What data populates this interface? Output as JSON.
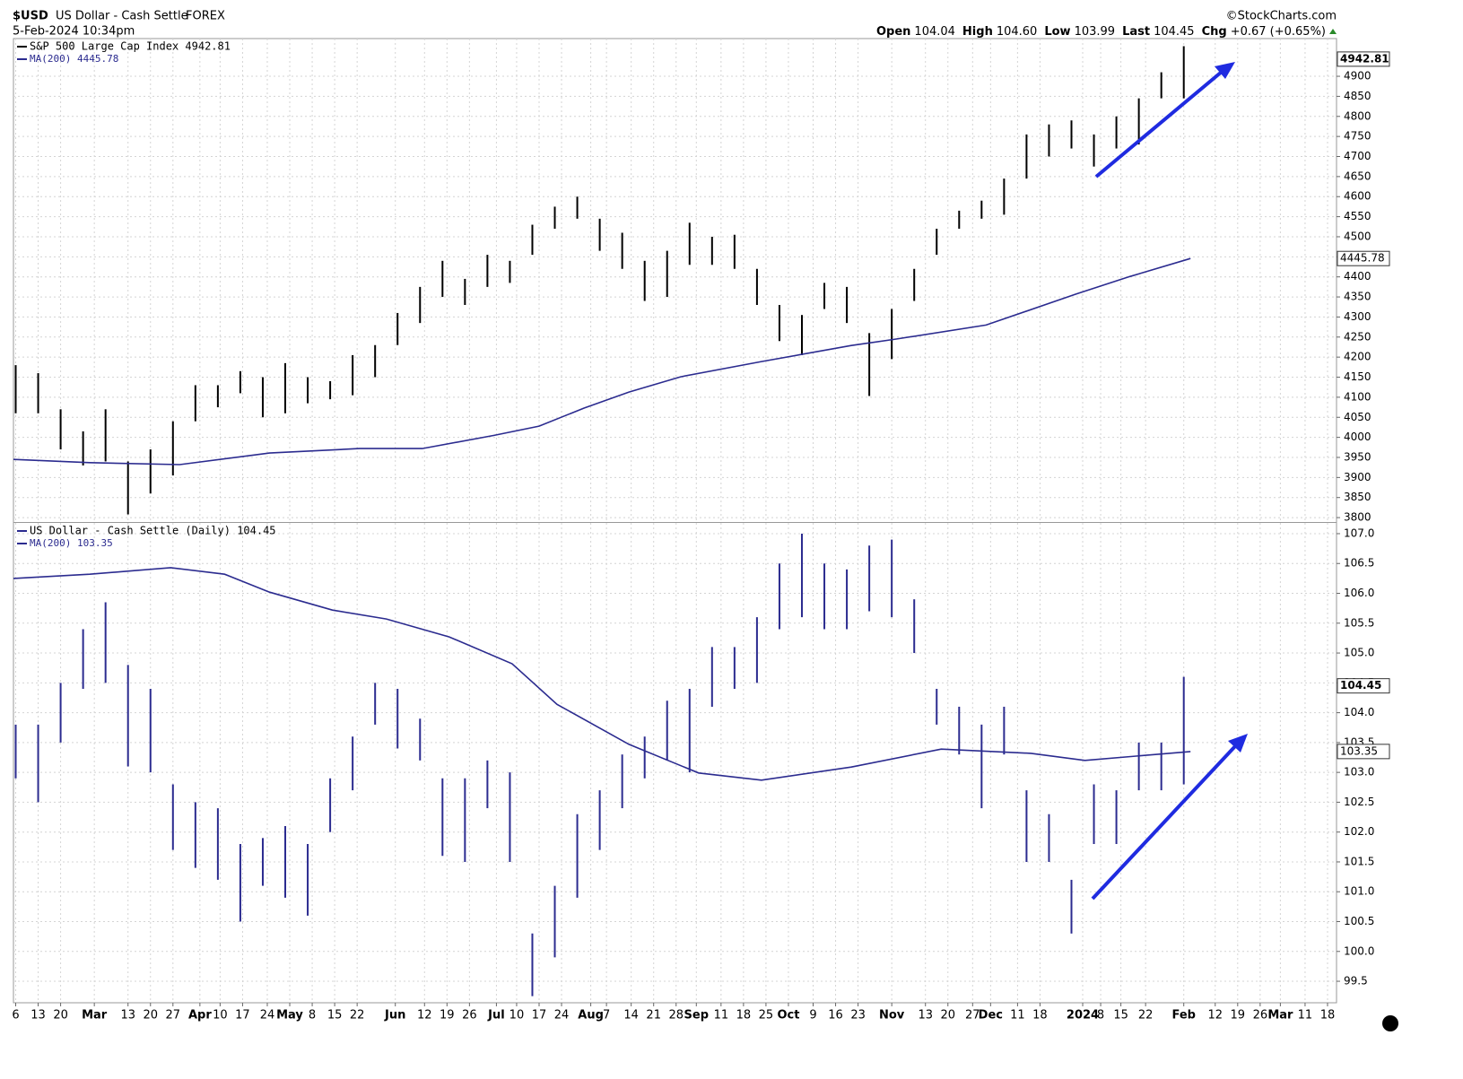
{
  "header": {
    "symbol": "$USD",
    "name": "US Dollar - Cash Settle",
    "exchange": "FOREX",
    "date": "5-Feb-2024 10:34pm",
    "source": "©StockCharts.com",
    "quote": [
      {
        "label": "Open",
        "value": "104.04"
      },
      {
        "label": "High",
        "value": "104.60"
      },
      {
        "label": "Low",
        "value": "103.99"
      },
      {
        "label": "Last",
        "value": "104.45"
      },
      {
        "label": "Chg",
        "value": "+0.67 (+0.65%)"
      }
    ]
  },
  "chart_data": [
    {
      "type": "ohlc",
      "ylim": [
        3789,
        4994
      ],
      "xlim": [
        -0.1,
        58.8
      ],
      "grid": true,
      "yticks": [
        3800,
        3850,
        3900,
        3950,
        4000,
        4050,
        4100,
        4150,
        4200,
        4250,
        4300,
        4350,
        4400,
        4450,
        4500,
        4550,
        4600,
        4650,
        4700,
        4750,
        4800,
        4850,
        4900
      ],
      "series": [
        {
          "name": "S&P 500 Large Cap Index 4942.81",
          "color": "#000000",
          "last": 4942.81,
          "x": [
            0,
            1,
            2,
            3,
            4,
            5,
            6,
            7,
            8,
            9,
            10,
            11,
            12,
            13,
            14,
            15,
            16,
            17,
            18,
            19,
            20,
            21,
            22,
            23,
            24,
            25,
            26,
            27,
            28,
            29,
            30,
            31,
            32,
            33,
            34,
            35,
            36,
            37,
            38,
            39,
            40,
            41,
            42,
            43,
            44,
            45,
            46,
            47,
            48,
            49,
            50,
            51,
            52
          ],
          "high": [
            4180,
            4160,
            4070,
            4015,
            4070,
            3940,
            3970,
            4040,
            4130,
            4130,
            4165,
            4150,
            4185,
            4150,
            4140,
            4205,
            4230,
            4310,
            4375,
            4440,
            4395,
            4455,
            4440,
            4530,
            4575,
            4600,
            4545,
            4510,
            4440,
            4465,
            4535,
            4500,
            4505,
            4420,
            4330,
            4305,
            4385,
            4375,
            4260,
            4320,
            4420,
            4520,
            4565,
            4590,
            4645,
            4755,
            4780,
            4790,
            4755,
            4800,
            4845,
            4910,
            4975
          ],
          "low": [
            4060,
            4060,
            3970,
            3930,
            3940,
            3808,
            3860,
            3905,
            4040,
            4075,
            4110,
            4050,
            4060,
            4085,
            4095,
            4105,
            4150,
            4230,
            4285,
            4350,
            4330,
            4375,
            4385,
            4455,
            4520,
            4545,
            4465,
            4420,
            4340,
            4350,
            4430,
            4430,
            4420,
            4330,
            4240,
            4205,
            4320,
            4285,
            4103,
            4195,
            4340,
            4455,
            4520,
            4545,
            4555,
            4645,
            4700,
            4720,
            4675,
            4720,
            4730,
            4845,
            4845
          ]
        },
        {
          "name": "MA(200) 4445.78",
          "color": "#2b2b8f",
          "last": 4445.78,
          "x": [
            -0.1,
            3.3,
            7.3,
            11.3,
            15.3,
            18.1,
            21.3,
            23.3,
            25.3,
            27.3,
            29.6,
            33.2,
            37.2,
            39.2,
            43.2,
            47.2,
            49.6,
            52.3
          ],
          "values": [
            3945,
            3937,
            3932,
            3961,
            3972,
            3972,
            4005,
            4028,
            4073,
            4113,
            4151,
            4189,
            4229,
            4245,
            4280,
            4357,
            4401,
            4445.78
          ]
        }
      ]
    },
    {
      "type": "ohlc",
      "ylim": [
        99.14,
        107.18
      ],
      "xlim": [
        -0.1,
        58.8
      ],
      "grid": true,
      "yticks": [
        99.5,
        {
          "value": 100,
          "label": "100.0"
        },
        100.5,
        {
          "value": 101,
          "label": "101.0"
        },
        101.5,
        {
          "value": 102,
          "label": "102.0"
        },
        102.5,
        {
          "value": 103,
          "label": "103.0"
        },
        103.5,
        {
          "value": 104,
          "label": "104.0"
        },
        104.5,
        {
          "value": 105,
          "label": "105.0"
        },
        105.5,
        {
          "value": 106,
          "label": "106.0"
        },
        106.5,
        {
          "value": 107,
          "label": "107.0"
        }
      ],
      "xticks": [
        {
          "value": 0,
          "label": "6"
        },
        {
          "value": 1.0,
          "label": "13"
        },
        {
          "value": 2.0,
          "label": "20"
        },
        {
          "value": 3.5,
          "label": "Mar"
        },
        {
          "value": 5.0,
          "label": "13"
        },
        {
          "value": 6.0,
          "label": "20"
        },
        {
          "value": 7.0,
          "label": "27"
        },
        {
          "value": 8.2,
          "label": "Apr"
        },
        {
          "value": 9.1,
          "label": "10"
        },
        {
          "value": 10.1,
          "label": "17"
        },
        {
          "value": 11.2,
          "label": "24"
        },
        {
          "value": 12.2,
          "label": "May"
        },
        {
          "value": 13.2,
          "label": "8"
        },
        {
          "value": 14.2,
          "label": "15"
        },
        {
          "value": 15.2,
          "label": "22"
        },
        {
          "value": 16.9,
          "label": "Jun"
        },
        {
          "value": 18.2,
          "label": "12"
        },
        {
          "value": 19.2,
          "label": "19"
        },
        {
          "value": 20.2,
          "label": "26"
        },
        {
          "value": 21.4,
          "label": "Jul"
        },
        {
          "value": 22.3,
          "label": "10"
        },
        {
          "value": 23.3,
          "label": "17"
        },
        {
          "value": 24.3,
          "label": "24"
        },
        {
          "value": 25.6,
          "label": "Aug"
        },
        {
          "value": 26.3,
          "label": "7"
        },
        {
          "value": 27.4,
          "label": "14"
        },
        {
          "value": 28.4,
          "label": "21"
        },
        {
          "value": 29.4,
          "label": "28"
        },
        {
          "value": 30.3,
          "label": "Sep"
        },
        {
          "value": 31.4,
          "label": "11"
        },
        {
          "value": 32.4,
          "label": "18"
        },
        {
          "value": 33.4,
          "label": "25"
        },
        {
          "value": 34.4,
          "label": "Oct"
        },
        {
          "value": 35.5,
          "label": "9"
        },
        {
          "value": 36.5,
          "label": "16"
        },
        {
          "value": 37.5,
          "label": "23"
        },
        {
          "value": 39.0,
          "label": "Nov"
        },
        {
          "value": 40.5,
          "label": "13"
        },
        {
          "value": 41.5,
          "label": "20"
        },
        {
          "value": 42.6,
          "label": "27"
        },
        {
          "value": 43.4,
          "label": "Dec"
        },
        {
          "value": 44.6,
          "label": "11"
        },
        {
          "value": 45.6,
          "label": "18"
        },
        {
          "value": 47.5,
          "label": "2024"
        },
        {
          "value": 48.3,
          "label": "8"
        },
        {
          "value": 49.2,
          "label": "15"
        },
        {
          "value": 50.3,
          "label": "22"
        },
        {
          "value": 52.0,
          "label": "Feb"
        },
        {
          "value": 53.4,
          "label": "12"
        },
        {
          "value": 54.4,
          "label": "19"
        },
        {
          "value": 55.4,
          "label": "26"
        },
        {
          "value": 56.3,
          "label": "Mar"
        },
        {
          "value": 57.4,
          "label": "11"
        },
        {
          "value": 58.4,
          "label": "18"
        }
      ],
      "series": [
        {
          "name": "US Dollar - Cash Settle (Daily) 104.45",
          "color": "#2b2b8f",
          "last": 104.45,
          "x": [
            0,
            1,
            2,
            3,
            4,
            5,
            6,
            7,
            8,
            9,
            10,
            11,
            12,
            13,
            14,
            15,
            16,
            17,
            18,
            19,
            20,
            21,
            22,
            23,
            24,
            25,
            26,
            27,
            28,
            29,
            30,
            31,
            32,
            33,
            34,
            35,
            36,
            37,
            38,
            39,
            40,
            41,
            42,
            43,
            44,
            45,
            46,
            47,
            48,
            49,
            50,
            51,
            52
          ],
          "high": [
            103.8,
            103.8,
            104.5,
            105.4,
            105.85,
            104.8,
            104.4,
            102.8,
            102.5,
            102.4,
            101.8,
            101.9,
            102.1,
            101.8,
            102.9,
            103.6,
            104.5,
            104.4,
            103.9,
            102.9,
            102.9,
            103.2,
            103.0,
            100.3,
            101.1,
            102.3,
            102.7,
            103.3,
            103.6,
            104.2,
            104.4,
            105.1,
            105.1,
            105.6,
            106.5,
            107.0,
            106.5,
            106.4,
            106.8,
            106.9,
            105.9,
            104.4,
            104.1,
            103.8,
            104.1,
            102.7,
            102.3,
            101.2,
            102.8,
            102.7,
            103.5,
            103.5,
            104.6
          ],
          "low": [
            102.9,
            102.5,
            103.5,
            104.4,
            104.5,
            103.1,
            103.0,
            101.7,
            101.4,
            101.2,
            100.5,
            101.1,
            100.9,
            100.6,
            102.0,
            102.7,
            103.8,
            103.4,
            103.2,
            101.6,
            101.5,
            102.4,
            101.5,
            99.25,
            99.9,
            100.9,
            101.7,
            102.4,
            102.9,
            103.2,
            103.0,
            104.1,
            104.4,
            104.5,
            105.4,
            105.6,
            105.4,
            105.4,
            105.7,
            105.6,
            105.0,
            103.8,
            103.3,
            102.4,
            103.3,
            101.5,
            101.5,
            100.3,
            101.8,
            101.8,
            102.7,
            102.7,
            102.8
          ]
        },
        {
          "name": "MA(200) 103.35",
          "color": "#2b2b8f",
          "last": 103.35,
          "x": [
            -0.1,
            3.3,
            6.9,
            9.3,
            11.3,
            14.1,
            16.5,
            19.3,
            22.1,
            24.1,
            27.3,
            30.4,
            33.2,
            37.2,
            41.2,
            45.2,
            47.6,
            52.3
          ],
          "values": [
            106.25,
            106.32,
            106.43,
            106.32,
            106.02,
            105.72,
            105.57,
            105.27,
            104.82,
            104.14,
            103.47,
            102.99,
            102.87,
            103.09,
            103.39,
            103.32,
            103.2,
            103.35
          ]
        }
      ]
    }
  ]
}
